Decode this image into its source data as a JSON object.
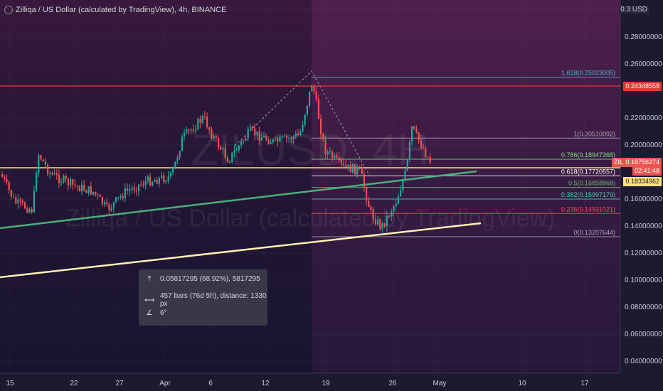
{
  "header": {
    "title": "Zilliqa / US Dollar (calculated by TradingView), 4h, BINANCE",
    "currency": "USD"
  },
  "watermark": {
    "symbol": "ZILUSD, 4H",
    "name": "Zilliqa / US Dollar (calculated by TradingView)"
  },
  "y_axis": {
    "ticks": [
      "0.30000000",
      "0.28000000",
      "0.26000000",
      "0.22000000",
      "0.20000000",
      "0.16000000",
      "0.14000000",
      "0.12000000",
      "0.10000000",
      "0.08000000",
      "0.06000000",
      "0.04000000"
    ],
    "tick_values": [
      0.3,
      0.28,
      0.26,
      0.22,
      0.2,
      0.16,
      0.14,
      0.12,
      0.1,
      0.08,
      0.06,
      0.04
    ]
  },
  "x_axis": {
    "ticks": [
      "15",
      "22",
      "27",
      "Apr",
      "6",
      "12",
      "19",
      "26",
      "May",
      "10",
      "17"
    ]
  },
  "price_tags": {
    "resistance": "0.24348559",
    "symbol": "ZILUSD",
    "last_price": "0.18756274",
    "countdown": "02:41:48",
    "support": "0.18334962"
  },
  "fib_levels": [
    {
      "label": "1.618(0.25023005)",
      "value": 0.25023005,
      "color": "#4fb3c8"
    },
    {
      "label": "1(0.20510092)",
      "value": 0.20510092,
      "color": "#a9a9b3"
    },
    {
      "label": "0.786(0.18947368)",
      "value": 0.18947368,
      "color": "#7ee07e"
    },
    {
      "label": "0.618(0.17720557)",
      "value": 0.17720557,
      "color": "#ffffff"
    },
    {
      "label": "0.5(0.16858868)",
      "value": 0.16858868,
      "color": "#66bb6a"
    },
    {
      "label": "0.382(0.15997179)",
      "value": 0.15997179,
      "color": "#4dd0b0"
    },
    {
      "label": "0.236(0.14931021)",
      "value": 0.14931021,
      "color": "#ef5350"
    },
    {
      "label": "0(0.13207644)",
      "value": 0.13207644,
      "color": "#a9a9b3"
    }
  ],
  "info_box": {
    "price_range": "0.05817295 (68.92%), 5817295",
    "bars_range": "457 bars (76d 5h), distance: 1330 px",
    "angle": "6°"
  },
  "colors": {
    "up": "#26a69a",
    "down": "#ef5350",
    "resistance_line": "#e53935",
    "support_line": "#ffe082",
    "trend_green": "#4caf7a",
    "trend_yellow": "#fff3b0"
  }
}
